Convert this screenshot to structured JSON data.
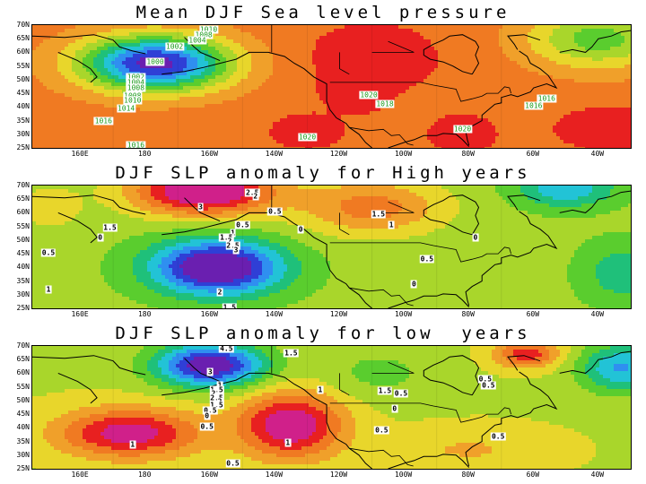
{
  "panels": [
    {
      "title": "Mean DJF Sea level pressure",
      "kind": "mean",
      "lat_labels": [
        "70N",
        "65N",
        "60N",
        "55N",
        "50N",
        "45N",
        "40N",
        "35N",
        "30N",
        "25N"
      ],
      "lon_labels": [
        "160E",
        "180",
        "160W",
        "140W",
        "120W",
        "100W",
        "80W",
        "60W",
        "40W"
      ],
      "contour_labels": [
        {
          "text": "1010",
          "lon": -160.5,
          "lat": 68.5
        },
        {
          "text": "1008",
          "lon": -162,
          "lat": 66.5
        },
        {
          "text": "1004",
          "lon": -164,
          "lat": 64.5
        },
        {
          "text": "1002",
          "lon": -171,
          "lat": 62
        },
        {
          "text": "1000",
          "lon": -177,
          "lat": 56.5
        },
        {
          "text": "1002",
          "lon": -183,
          "lat": 51
        },
        {
          "text": "1004",
          "lon": -183,
          "lat": 49
        },
        {
          "text": "1008",
          "lon": -183,
          "lat": 47
        },
        {
          "text": "1008",
          "lon": -184,
          "lat": 44
        },
        {
          "text": "1010",
          "lon": -184,
          "lat": 42.5
        },
        {
          "text": "1014",
          "lon": -186,
          "lat": 39.5
        },
        {
          "text": "1016",
          "lon": -193,
          "lat": 35
        },
        {
          "text": "1016",
          "lon": -183,
          "lat": 26
        },
        {
          "text": "1020",
          "lon": -130,
          "lat": 29
        },
        {
          "text": "1020",
          "lon": -111,
          "lat": 44.5
        },
        {
          "text": "1018",
          "lon": -106,
          "lat": 41
        },
        {
          "text": "1020",
          "lon": -82,
          "lat": 32
        },
        {
          "text": "1016",
          "lon": -56,
          "lat": 43
        },
        {
          "text": "1016",
          "lon": -60,
          "lat": 40.5
        }
      ]
    },
    {
      "title": "DJF SLP anomaly for High years",
      "kind": "high",
      "lat_labels": [
        "70N",
        "65N",
        "60N",
        "55N",
        "50N",
        "45N",
        "40N",
        "35N",
        "30N",
        "25N"
      ],
      "lon_labels": [
        "160E",
        "180",
        "160W",
        "140W",
        "120W",
        "100W",
        "80W",
        "60W",
        "40W"
      ],
      "contour_labels": [
        {
          "text": "2.5",
          "lon": -147,
          "lat": 67.5
        },
        {
          "text": "2",
          "lon": -146,
          "lat": 66
        },
        {
          "text": "3",
          "lon": -163,
          "lat": 62
        },
        {
          "text": "0.5",
          "lon": -140,
          "lat": 60.5
        },
        {
          "text": "1.5",
          "lon": -108,
          "lat": 59.5
        },
        {
          "text": "1",
          "lon": -104,
          "lat": 55.5
        },
        {
          "text": "1.5",
          "lon": -191,
          "lat": 54.5
        },
        {
          "text": "0.5",
          "lon": -150,
          "lat": 55.5
        },
        {
          "text": "1",
          "lon": -153,
          "lat": 52.5
        },
        {
          "text": "1.5",
          "lon": -155,
          "lat": 51
        },
        {
          "text": "2",
          "lon": -154,
          "lat": 49.5
        },
        {
          "text": "2.5",
          "lon": -153,
          "lat": 48
        },
        {
          "text": "3",
          "lon": -152,
          "lat": 46.5
        },
        {
          "text": "0",
          "lon": -132,
          "lat": 54
        },
        {
          "text": "0",
          "lon": -194,
          "lat": 51
        },
        {
          "text": "0",
          "lon": -78,
          "lat": 51
        },
        {
          "text": "0.5",
          "lon": -210,
          "lat": 45.5
        },
        {
          "text": "0.5",
          "lon": -93,
          "lat": 43
        },
        {
          "text": "1",
          "lon": -210,
          "lat": 32
        },
        {
          "text": "2",
          "lon": -157,
          "lat": 31
        },
        {
          "text": "0",
          "lon": -97,
          "lat": 34
        },
        {
          "text": "1.5",
          "lon": -154,
          "lat": 25.5
        }
      ]
    },
    {
      "title": "DJF SLP anomaly for low  years",
      "kind": "low",
      "lat_labels": [
        "70N",
        "65N",
        "60N",
        "55N",
        "50N",
        "45N",
        "40N",
        "35N",
        "30N",
        "25N"
      ],
      "lon_labels": [
        "160E",
        "180",
        "160W",
        "140W",
        "120W",
        "100W",
        "80W",
        "60W",
        "40W"
      ],
      "contour_labels": [
        {
          "text": "4.5",
          "lon": -155,
          "lat": 69
        },
        {
          "text": "1.5",
          "lon": -135,
          "lat": 67.5
        },
        {
          "text": "3",
          "lon": -160,
          "lat": 60.5
        },
        {
          "text": "1",
          "lon": -157,
          "lat": 55.5
        },
        {
          "text": "1.5",
          "lon": -158,
          "lat": 54
        },
        {
          "text": "2",
          "lon": -159,
          "lat": 52.5
        },
        {
          "text": "2.5",
          "lon": -158,
          "lat": 51
        },
        {
          "text": "2",
          "lon": -157,
          "lat": 49.5
        },
        {
          "text": "1.5",
          "lon": -158,
          "lat": 48.5
        },
        {
          "text": "0.5",
          "lon": -160,
          "lat": 46.5
        },
        {
          "text": "0",
          "lon": -161,
          "lat": 44.5
        },
        {
          "text": "0.5",
          "lon": -161,
          "lat": 40.5
        },
        {
          "text": "1",
          "lon": -184,
          "lat": 34
        },
        {
          "text": "1",
          "lon": -136,
          "lat": 34.5
        },
        {
          "text": "0.5",
          "lon": -153,
          "lat": 27
        },
        {
          "text": "1",
          "lon": -126,
          "lat": 54
        },
        {
          "text": "0.5",
          "lon": -107,
          "lat": 39
        },
        {
          "text": "1.5",
          "lon": -106,
          "lat": 53.5
        },
        {
          "text": "0.5",
          "lon": -101,
          "lat": 52.5
        },
        {
          "text": "0",
          "lon": -103,
          "lat": 47
        },
        {
          "text": "0.5",
          "lon": -75,
          "lat": 58
        },
        {
          "text": "0.5",
          "lon": -74,
          "lat": 55.5
        },
        {
          "text": "0.5",
          "lon": -71,
          "lat": 37
        }
      ]
    }
  ]
}
